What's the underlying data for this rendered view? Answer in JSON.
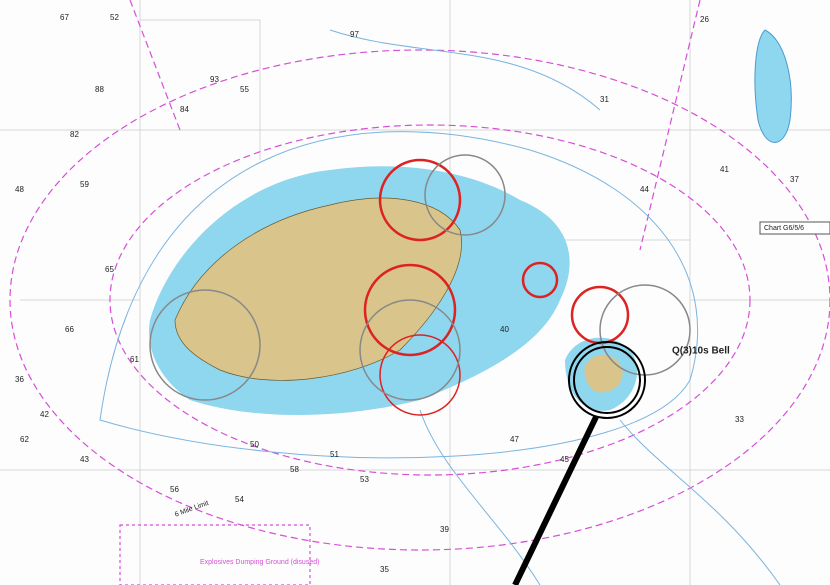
{
  "map": {
    "labels": {
      "light": "Q(3)10s Bell",
      "chart_box": "Chart G6/5/6",
      "limit": "6 Mile Limit",
      "dumping": "Explosives Dumping Ground (disused)"
    },
    "soundings": [
      "67",
      "52",
      "97",
      "88",
      "93",
      "84",
      "82",
      "48",
      "59",
      "65",
      "66",
      "36",
      "42",
      "55",
      "61",
      "62",
      "43",
      "56",
      "58",
      "54",
      "53",
      "50",
      "51",
      "47",
      "45",
      "39",
      "35",
      "31",
      "26",
      "41",
      "44",
      "37",
      "40",
      "33"
    ]
  }
}
